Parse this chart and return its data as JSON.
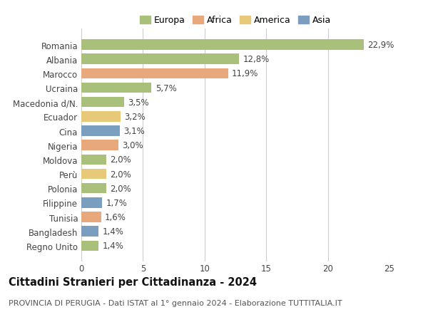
{
  "countries": [
    "Romania",
    "Albania",
    "Marocco",
    "Ucraina",
    "Macedonia d/N.",
    "Ecuador",
    "Cina",
    "Nigeria",
    "Moldova",
    "Perù",
    "Polonia",
    "Filippine",
    "Tunisia",
    "Bangladesh",
    "Regno Unito"
  ],
  "values": [
    22.9,
    12.8,
    11.9,
    5.7,
    3.5,
    3.2,
    3.1,
    3.0,
    2.0,
    2.0,
    2.0,
    1.7,
    1.6,
    1.4,
    1.4
  ],
  "labels": [
    "22,9%",
    "12,8%",
    "11,9%",
    "5,7%",
    "3,5%",
    "3,2%",
    "3,1%",
    "3,0%",
    "2,0%",
    "2,0%",
    "2,0%",
    "1,7%",
    "1,6%",
    "1,4%",
    "1,4%"
  ],
  "colors": [
    "#a8c07a",
    "#a8c07a",
    "#e8a87c",
    "#a8c07a",
    "#a8c07a",
    "#e8c97a",
    "#7a9ec0",
    "#e8a87c",
    "#a8c07a",
    "#e8c97a",
    "#a8c07a",
    "#7a9ec0",
    "#e8a87c",
    "#7a9ec0",
    "#a8c07a"
  ],
  "legend_labels": [
    "Europa",
    "Africa",
    "America",
    "Asia"
  ],
  "legend_colors": [
    "#a8c07a",
    "#e8a87c",
    "#e8c97a",
    "#7a9ec0"
  ],
  "xlim": [
    0,
    25
  ],
  "xticks": [
    0,
    5,
    10,
    15,
    20,
    25
  ],
  "title": "Cittadini Stranieri per Cittadinanza - 2024",
  "subtitle": "PROVINCIA DI PERUGIA - Dati ISTAT al 1° gennaio 2024 - Elaborazione TUTTITALIA.IT",
  "bg_color": "#ffffff",
  "grid_color": "#cccccc",
  "bar_height": 0.72,
  "label_fontsize": 8.5,
  "ytick_fontsize": 8.5,
  "xtick_fontsize": 8.5,
  "title_fontsize": 10.5,
  "subtitle_fontsize": 8.0
}
